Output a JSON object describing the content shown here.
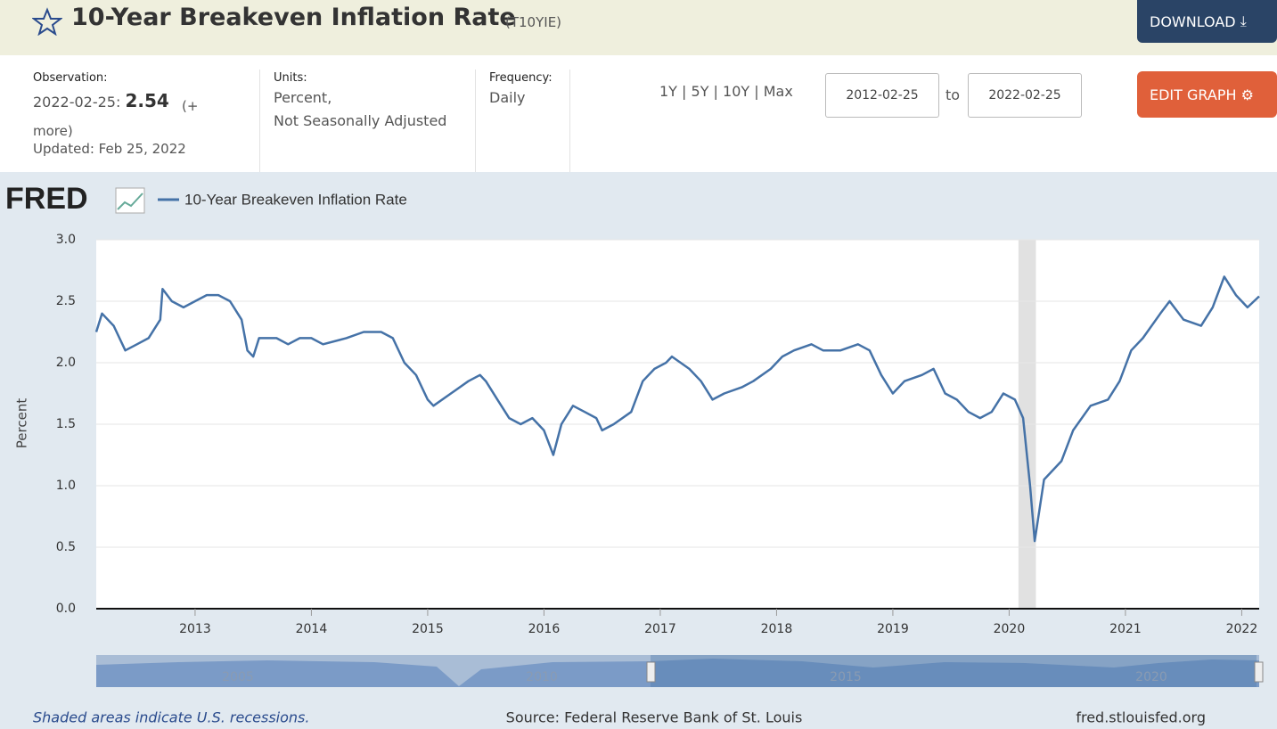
{
  "header": {
    "title": "10-Year Breakeven Inflation Rate",
    "series_id": "(T10YIE)",
    "download": "DOWNLOAD"
  },
  "info": {
    "observation_label": "Observation:",
    "observation_date": "2022-02-25:",
    "observation_value": "2.54",
    "more": "(+ more)",
    "updated": "Updated: Feb 25, 2022",
    "units_label": "Units:",
    "units_line1": "Percent,",
    "units_line2": "Not Seasonally Adjusted",
    "frequency_label": "Frequency:",
    "frequency": "Daily",
    "ranges": [
      "1Y",
      "5Y",
      "10Y",
      "Max"
    ],
    "start_date": "2012-02-25",
    "to": "to",
    "end_date": "2022-02-25",
    "edit_graph": "EDIT GRAPH"
  },
  "chart_data": {
    "type": "line",
    "logo": "FRED",
    "ylabel": "Percent",
    "series": [
      {
        "name": "10-Year Breakeven Inflation Rate",
        "color": "#4572a7",
        "x": [
          2012.15,
          2012.2,
          2012.3,
          2012.4,
          2012.5,
          2012.6,
          2012.7,
          2012.72,
          2012.8,
          2012.9,
          2013.0,
          2013.1,
          2013.2,
          2013.3,
          2013.4,
          2013.45,
          2013.5,
          2013.55,
          2013.7,
          2013.8,
          2013.9,
          2014.0,
          2014.1,
          2014.3,
          2014.45,
          2014.6,
          2014.7,
          2014.8,
          2014.9,
          2015.0,
          2015.05,
          2015.2,
          2015.35,
          2015.45,
          2015.5,
          2015.6,
          2015.7,
          2015.8,
          2015.9,
          2016.0,
          2016.08,
          2016.15,
          2016.25,
          2016.35,
          2016.45,
          2016.5,
          2016.6,
          2016.75,
          2016.85,
          2016.95,
          2017.05,
          2017.1,
          2017.25,
          2017.35,
          2017.45,
          2017.55,
          2017.7,
          2017.8,
          2017.95,
          2018.05,
          2018.15,
          2018.3,
          2018.4,
          2018.55,
          2018.7,
          2018.8,
          2018.9,
          2019.0,
          2019.1,
          2019.25,
          2019.35,
          2019.45,
          2019.55,
          2019.65,
          2019.75,
          2019.85,
          2019.95,
          2020.05,
          2020.12,
          2020.18,
          2020.22,
          2020.3,
          2020.45,
          2020.55,
          2020.7,
          2020.85,
          2020.95,
          2021.05,
          2021.15,
          2021.3,
          2021.38,
          2021.5,
          2021.65,
          2021.75,
          2021.85,
          2021.95,
          2022.05,
          2022.15
        ],
        "values": [
          2.25,
          2.4,
          2.3,
          2.1,
          2.15,
          2.2,
          2.35,
          2.6,
          2.5,
          2.45,
          2.5,
          2.55,
          2.55,
          2.5,
          2.35,
          2.1,
          2.05,
          2.2,
          2.2,
          2.15,
          2.2,
          2.2,
          2.15,
          2.2,
          2.25,
          2.25,
          2.2,
          2.0,
          1.9,
          1.7,
          1.65,
          1.75,
          1.85,
          1.9,
          1.85,
          1.7,
          1.55,
          1.5,
          1.55,
          1.45,
          1.25,
          1.5,
          1.65,
          1.6,
          1.55,
          1.45,
          1.5,
          1.6,
          1.85,
          1.95,
          2.0,
          2.05,
          1.95,
          1.85,
          1.7,
          1.75,
          1.8,
          1.85,
          1.95,
          2.05,
          2.1,
          2.15,
          2.1,
          2.1,
          2.15,
          2.1,
          1.9,
          1.75,
          1.85,
          1.9,
          1.95,
          1.75,
          1.7,
          1.6,
          1.55,
          1.6,
          1.75,
          1.7,
          1.55,
          1.0,
          0.55,
          1.05,
          1.2,
          1.45,
          1.65,
          1.7,
          1.85,
          2.1,
          2.2,
          2.4,
          2.5,
          2.35,
          2.3,
          2.45,
          2.7,
          2.55,
          2.45,
          2.54
        ]
      }
    ],
    "recessions": [
      [
        2020.08,
        2020.23
      ]
    ],
    "xlim": [
      2012.15,
      2022.15
    ],
    "xticks": [
      2013,
      2014,
      2015,
      2016,
      2017,
      2018,
      2019,
      2020,
      2021,
      2022
    ],
    "ylim": [
      0,
      3
    ],
    "yticks": [
      {
        "value": 0,
        "label": "0.0"
      },
      0.5,
      {
        "value": 1,
        "label": "1.0"
      },
      1.5,
      {
        "value": 2,
        "label": "2.0"
      },
      2.5,
      {
        "value": 3,
        "label": "3.0"
      }
    ],
    "grid": true,
    "navigator_labels": [
      "2005",
      "2010",
      "2015",
      "2020"
    ]
  },
  "footer": {
    "note": "Shaded areas indicate U.S. recessions.",
    "source": "Source: Federal Reserve Bank of St. Louis",
    "site": "fred.stlouisfed.org"
  }
}
